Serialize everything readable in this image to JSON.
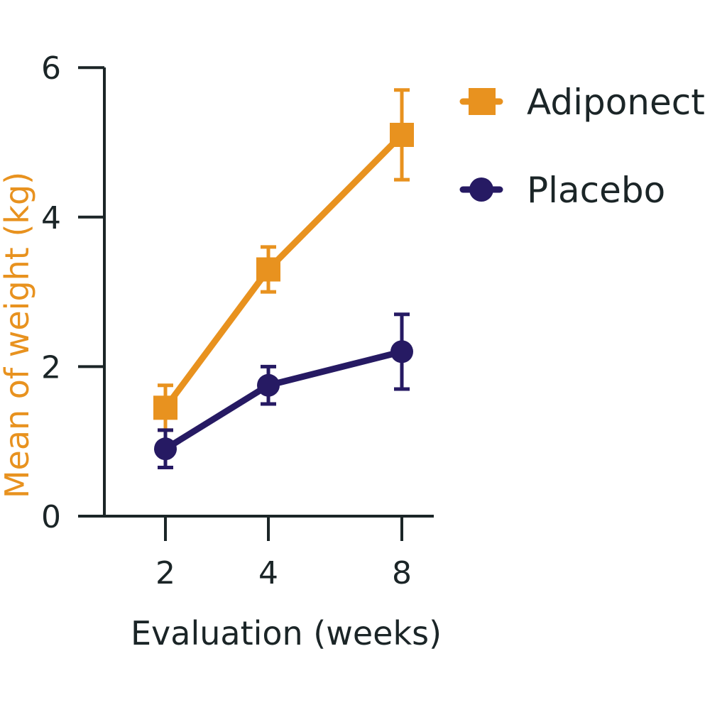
{
  "chart_data": {
    "type": "line",
    "x": [
      2,
      4,
      8
    ],
    "x_ticks": [
      "2",
      "4",
      "8"
    ],
    "y_ticks": [
      "0",
      "2",
      "4",
      "6"
    ],
    "ylim": [
      0,
      6
    ],
    "xlabel": "Evaluation (weeks)",
    "ylabel": "Mean of weight (kg)",
    "grid": false,
    "legend_position": "right",
    "series": [
      {
        "name": "Adiponect",
        "marker": "square",
        "color": "#e8921f",
        "values": [
          1.45,
          3.3,
          5.1
        ],
        "error_low": [
          1.15,
          3.0,
          4.5
        ],
        "error_high": [
          1.75,
          3.6,
          5.7
        ]
      },
      {
        "name": "Placebo",
        "marker": "circle",
        "color": "#261a63",
        "values": [
          0.9,
          1.75,
          2.2
        ],
        "error_low": [
          0.65,
          1.5,
          1.7
        ],
        "error_high": [
          1.15,
          2.0,
          2.7
        ]
      }
    ],
    "colors": {
      "axis": "#1b2527",
      "ylabel": "#e8921f",
      "xlabel": "#1b2527"
    }
  }
}
